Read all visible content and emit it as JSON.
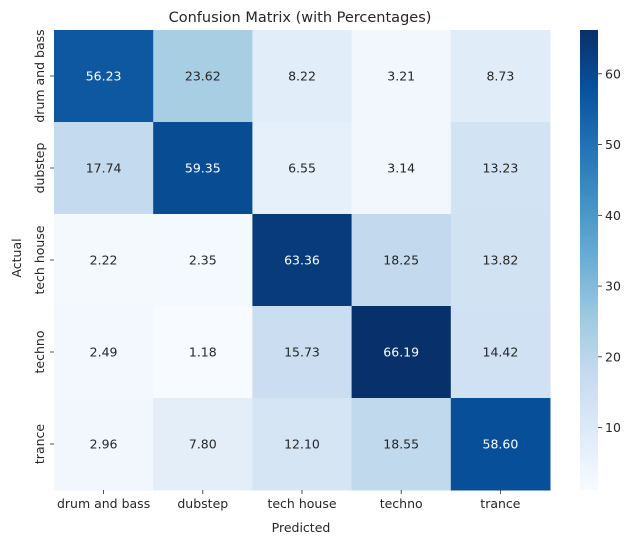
{
  "chart_data": {
    "type": "heatmap",
    "title": "Confusion Matrix (with Percentages)",
    "xlabel": "Predicted",
    "ylabel": "Actual",
    "x_categories": [
      "drum and bass",
      "dubstep",
      "tech house",
      "techno",
      "trance"
    ],
    "y_categories": [
      "drum and bass",
      "dubstep",
      "tech house",
      "techno",
      "trance"
    ],
    "values": [
      [
        56.23,
        23.62,
        8.22,
        3.21,
        8.73
      ],
      [
        17.74,
        59.35,
        6.55,
        3.14,
        13.23
      ],
      [
        2.22,
        2.35,
        63.36,
        18.25,
        13.82
      ],
      [
        2.49,
        1.18,
        15.73,
        66.19,
        14.42
      ],
      [
        2.96,
        7.8,
        12.1,
        18.55,
        58.6
      ]
    ],
    "value_labels": [
      [
        "56.23",
        "23.62",
        "8.22",
        "3.21",
        "8.73"
      ],
      [
        "17.74",
        "59.35",
        "6.55",
        "3.14",
        "13.23"
      ],
      [
        "2.22",
        "2.35",
        "63.36",
        "18.25",
        "13.82"
      ],
      [
        "2.49",
        "1.18",
        "15.73",
        "66.19",
        "14.42"
      ],
      [
        "2.96",
        "7.80",
        "12.10",
        "18.55",
        "58.60"
      ]
    ],
    "colormap": "Blues",
    "colorbar": {
      "range": [
        1.18,
        66.19
      ],
      "ticks": [
        10,
        20,
        30,
        40,
        50,
        60
      ],
      "tick_labels": [
        "10",
        "20",
        "30",
        "40",
        "50",
        "60"
      ]
    }
  }
}
